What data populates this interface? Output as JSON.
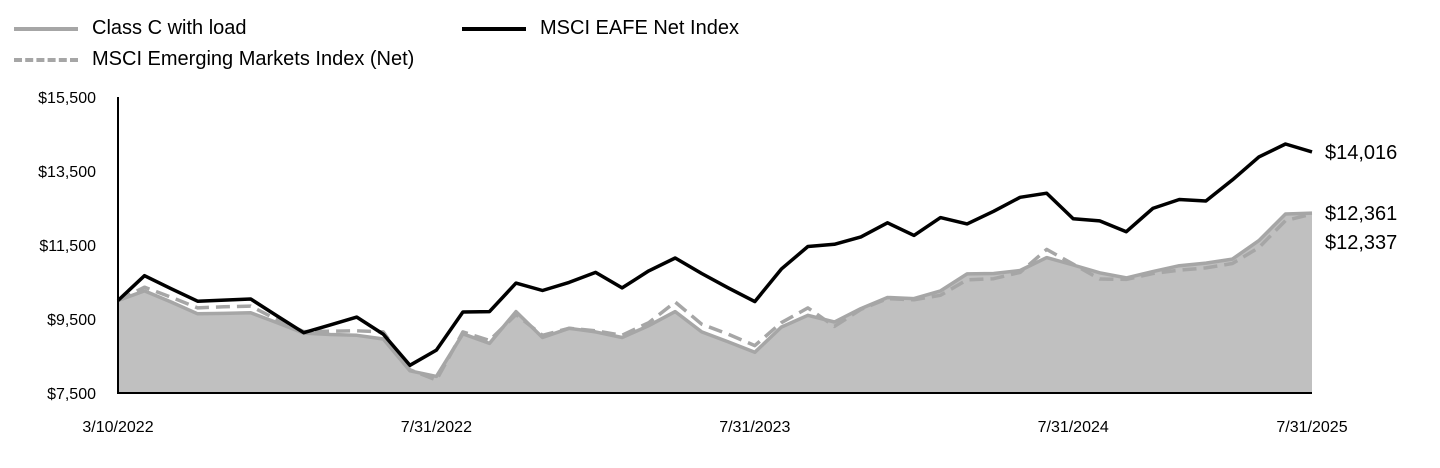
{
  "legend": {
    "item1": "Class C with load",
    "item2": "MSCI Emerging Markets Index (Net)",
    "item3": "MSCI EAFE Net Index"
  },
  "colors": {
    "area": "#c0c0c0",
    "class_c_line": "#a6a6a6",
    "emerging_line": "#a6a6a6",
    "eafe_line": "#000000"
  },
  "chart_data": {
    "type": "area",
    "y_ticks": [
      "$15,500",
      "$13,500",
      "$11,500",
      "$9,500",
      "$7,500"
    ],
    "x_ticks": [
      "3/10/2022",
      "7/31/2022",
      "7/31/2023",
      "7/31/2024",
      "7/31/2025"
    ],
    "y_tick_values": [
      15500,
      13500,
      11500,
      9500,
      7500
    ],
    "ylim": [
      7500,
      15500
    ],
    "end_labels": [
      "$14,016",
      "$12,361",
      "$12,337"
    ],
    "series": [
      {
        "name": "Class C with load",
        "style": "area",
        "values": [
          10000,
          10260,
          9960,
          9640,
          9650,
          9670,
          9400,
          9120,
          9080,
          9060,
          8960,
          8100,
          7950,
          9100,
          8840,
          9700,
          9000,
          9250,
          9150,
          9000,
          9320,
          9700,
          9150,
          8880,
          8600,
          9280,
          9600,
          9420,
          9780,
          10080,
          10050,
          10260,
          10720,
          10730,
          10810,
          11160,
          10960,
          10750,
          10610,
          10780,
          10940,
          11010,
          11120,
          11620,
          12337,
          12361
        ]
      },
      {
        "name": "MSCI Emerging Markets Index (Net)",
        "style": "dashed",
        "values": [
          10000,
          10360,
          10090,
          9800,
          9830,
          9850,
          9480,
          9160,
          9170,
          9180,
          9150,
          8130,
          7850,
          9150,
          8920,
          9620,
          9060,
          9250,
          9180,
          9060,
          9400,
          9960,
          9360,
          9090,
          8780,
          9400,
          9800,
          9300,
          9760,
          10050,
          10020,
          10140,
          10560,
          10590,
          10760,
          11380,
          10980,
          10580,
          10570,
          10730,
          10820,
          10880,
          11000,
          11430,
          12160,
          12337
        ]
      },
      {
        "name": "MSCI EAFE Net Index",
        "style": "solid",
        "values": [
          10000,
          10670,
          10320,
          9980,
          10010,
          10040,
          9580,
          9130,
          9340,
          9550,
          9090,
          8250,
          8660,
          9690,
          9700,
          10470,
          10270,
          10490,
          10760,
          10340,
          10800,
          11150,
          10730,
          10340,
          9970,
          10850,
          11460,
          11520,
          11720,
          12100,
          11760,
          12240,
          12070,
          12410,
          12790,
          12900,
          12210,
          12150,
          11860,
          12490,
          12730,
          12690,
          13260,
          13880,
          14230,
          14016
        ]
      }
    ]
  }
}
